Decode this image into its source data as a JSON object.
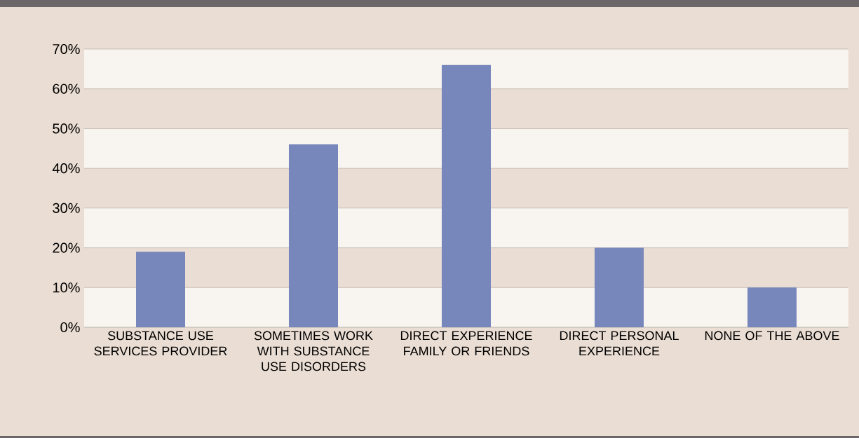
{
  "chart_data": {
    "type": "bar",
    "categories": [
      "SUBSTANCE USE SERVICES PROVIDER",
      "SOMETIMES WORK WITH SUBSTANCE USE DISORDERS",
      "DIRECT EXPERIENCE FAMILY OR FRIENDS",
      "DIRECT PERSONAL EXPERIENCE",
      "NONE OF THE ABOVE"
    ],
    "values": [
      19,
      46,
      66,
      20,
      10
    ],
    "color": "#7787bb",
    "ylim": [
      0,
      70
    ],
    "yticks": [
      {
        "value": 0,
        "label": "0%"
      },
      {
        "value": 10,
        "label": "10%"
      },
      {
        "value": 20,
        "label": "20%"
      },
      {
        "value": 30,
        "label": "30%"
      },
      {
        "value": 40,
        "label": "40%"
      },
      {
        "value": 50,
        "label": "50%"
      },
      {
        "value": 60,
        "label": "60%"
      },
      {
        "value": 70,
        "label": "70%"
      }
    ],
    "grid": "y"
  }
}
